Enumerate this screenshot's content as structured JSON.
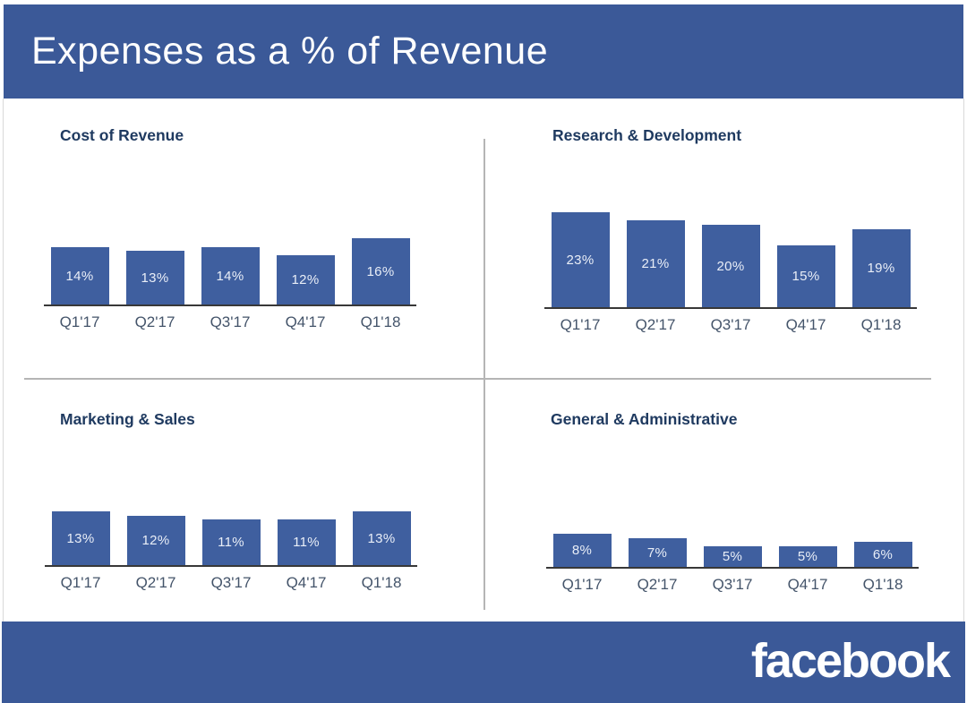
{
  "header": {
    "title": "Expenses as a % of Revenue"
  },
  "footer": {
    "logo_text": "facebook"
  },
  "colors": {
    "band_blue": "#3b5998",
    "bar_blue": "#3f5f9f",
    "chart_title_navy": "#1f3a60",
    "axis_label_slate": "#44546a",
    "bar_value_label": "#e9eef7",
    "divider_gray": "#b5b5b5",
    "axis_line_dark": "#383838"
  },
  "chart_data": [
    {
      "type": "bar",
      "title": "Cost of Revenue",
      "categories": [
        "Q1'17",
        "Q2'17",
        "Q3'17",
        "Q4'17",
        "Q1'18"
      ],
      "values": [
        14,
        13,
        14,
        12,
        16
      ],
      "value_labels": [
        "14%",
        "13%",
        "14%",
        "12%",
        "16%"
      ],
      "unit": "%",
      "ylim": [
        0,
        26
      ],
      "grid": false,
      "legend": "none",
      "data_label_position": "inside-center"
    },
    {
      "type": "bar",
      "title": "Research & Development",
      "categories": [
        "Q1'17",
        "Q2'17",
        "Q3'17",
        "Q4'17",
        "Q1'18"
      ],
      "values": [
        23,
        21,
        20,
        15,
        19
      ],
      "value_labels": [
        "23%",
        "21%",
        "20%",
        "15%",
        "19%"
      ],
      "unit": "%",
      "ylim": [
        0,
        26
      ],
      "grid": false,
      "legend": "none",
      "data_label_position": "inside-center"
    },
    {
      "type": "bar",
      "title": "Marketing & Sales",
      "categories": [
        "Q1'17",
        "Q2'17",
        "Q3'17",
        "Q4'17",
        "Q1'18"
      ],
      "values": [
        13,
        12,
        11,
        11,
        13
      ],
      "value_labels": [
        "13%",
        "12%",
        "11%",
        "11%",
        "13%"
      ],
      "unit": "%",
      "ylim": [
        0,
        26
      ],
      "grid": false,
      "legend": "none",
      "data_label_position": "inside-center"
    },
    {
      "type": "bar",
      "title": "General & Administrative",
      "categories": [
        "Q1'17",
        "Q2'17",
        "Q3'17",
        "Q4'17",
        "Q1'18"
      ],
      "values": [
        8,
        7,
        5,
        5,
        6
      ],
      "value_labels": [
        "8%",
        "7%",
        "5%",
        "5%",
        "6%"
      ],
      "unit": "%",
      "ylim": [
        0,
        26
      ],
      "grid": false,
      "legend": "none",
      "data_label_position": "inside-center"
    }
  ]
}
